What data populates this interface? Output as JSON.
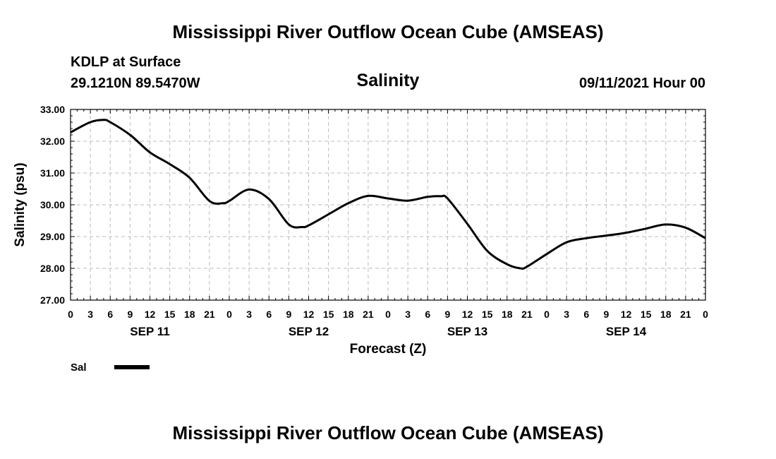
{
  "header": {
    "title": "Mississippi River Outflow Ocean Cube (AMSEAS)",
    "station": "KDLP at Surface",
    "coords": "29.1210N  89.5470W",
    "variable": "Salinity",
    "datetime": "09/11/2021 Hour 00"
  },
  "footer": {
    "title": "Mississippi River Outflow Ocean Cube (AMSEAS)"
  },
  "colors": {
    "line": "#000000",
    "grid": "#bbbbbb",
    "background": "#ffffff"
  },
  "chart_data": {
    "type": "line",
    "title": "Salinity",
    "xlabel": "Forecast (Z)",
    "ylabel": "Salinity (psu)",
    "ylim": [
      27.0,
      33.0
    ],
    "xlim": [
      "2021-09-11 00Z",
      "2021-09-15 00Z"
    ],
    "yticks": [
      "27.00",
      "28.00",
      "29.00",
      "30.00",
      "31.00",
      "32.00",
      "33.00"
    ],
    "xtick_labels": [
      "0",
      "3",
      "6",
      "9",
      "12",
      "15",
      "18",
      "21",
      "0",
      "3",
      "6",
      "9",
      "12",
      "15",
      "18",
      "21",
      "0",
      "3",
      "6",
      "9",
      "12",
      "15",
      "18",
      "21",
      "0",
      "3",
      "6",
      "9",
      "12",
      "15",
      "18",
      "21",
      "0"
    ],
    "day_labels": [
      "SEP 11",
      "SEP 12",
      "SEP 13",
      "SEP 14"
    ],
    "grid": true,
    "legend_position": "bottom-left",
    "series": [
      {
        "name": "Sal",
        "x": [
          "2021-09-11 00Z",
          "2021-09-11 03Z",
          "2021-09-11 05Z",
          "2021-09-11 06Z",
          "2021-09-11 09Z",
          "2021-09-11 12Z",
          "2021-09-11 15Z",
          "2021-09-11 18Z",
          "2021-09-11 21Z",
          "2021-09-11 23Z",
          "2021-09-12 00Z",
          "2021-09-12 03Z",
          "2021-09-12 06Z",
          "2021-09-12 09Z",
          "2021-09-12 11Z",
          "2021-09-12 12Z",
          "2021-09-12 15Z",
          "2021-09-12 18Z",
          "2021-09-12 21Z",
          "2021-09-13 00Z",
          "2021-09-13 03Z",
          "2021-09-13 06Z",
          "2021-09-13 08Z",
          "2021-09-13 09Z",
          "2021-09-13 12Z",
          "2021-09-13 15Z",
          "2021-09-13 18Z",
          "2021-09-13 20Z",
          "2021-09-13 21Z",
          "2021-09-14 00Z",
          "2021-09-14 03Z",
          "2021-09-14 06Z",
          "2021-09-14 09Z",
          "2021-09-14 12Z",
          "2021-09-14 15Z",
          "2021-09-14 18Z",
          "2021-09-14 21Z",
          "2021-09-15 00Z"
        ],
        "y": [
          32.28,
          32.6,
          32.67,
          32.6,
          32.2,
          31.65,
          31.28,
          30.85,
          30.12,
          30.05,
          30.12,
          30.48,
          30.18,
          29.38,
          29.3,
          29.35,
          29.7,
          30.05,
          30.28,
          30.2,
          30.13,
          30.25,
          30.27,
          30.2,
          29.4,
          28.55,
          28.13,
          28.0,
          28.05,
          28.45,
          28.82,
          28.95,
          29.03,
          29.12,
          29.25,
          29.38,
          29.28,
          28.95
        ]
      }
    ]
  }
}
